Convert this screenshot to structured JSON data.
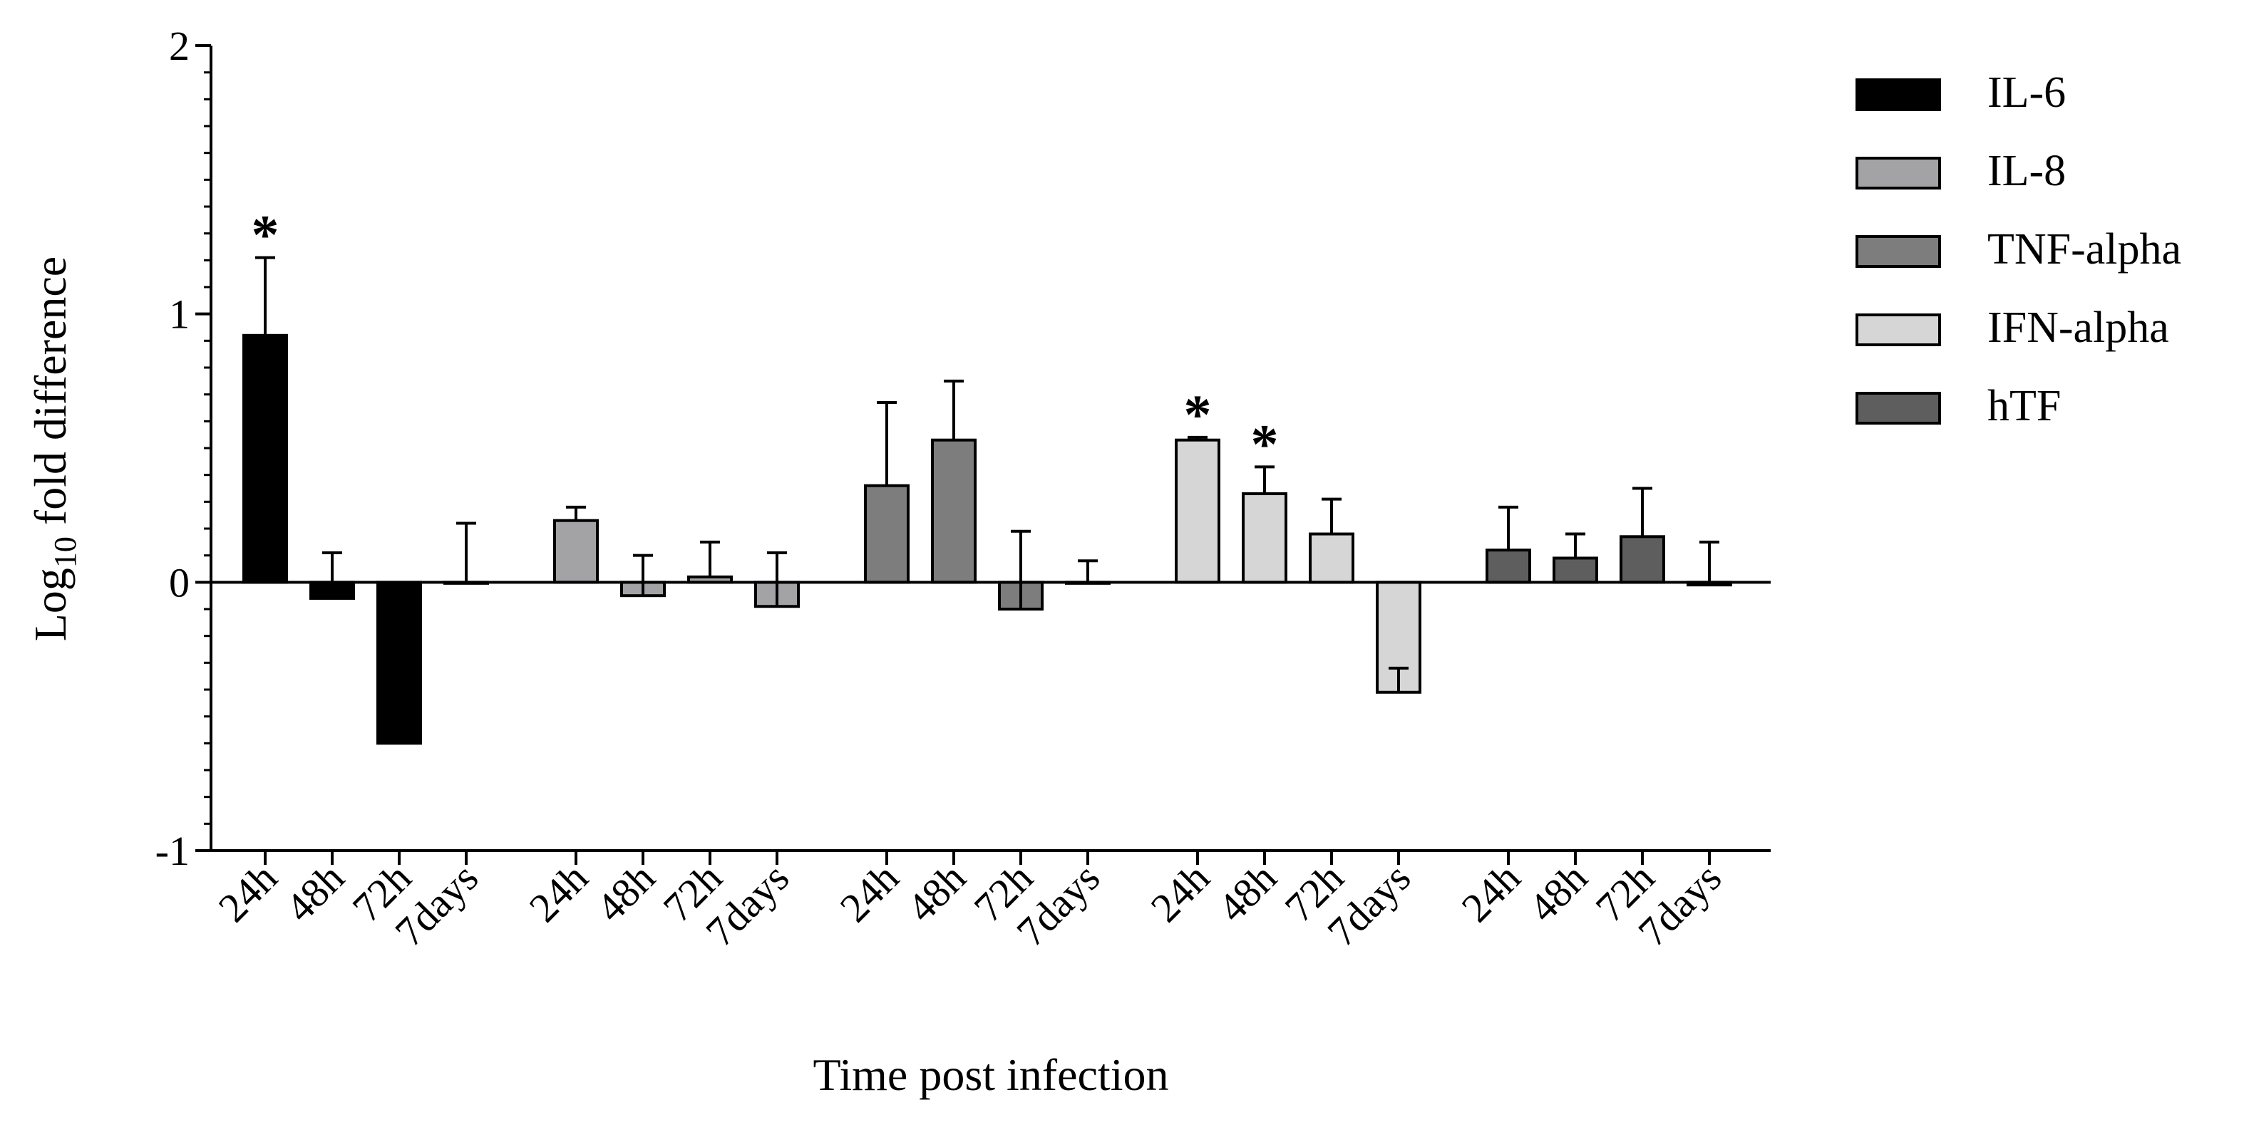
{
  "chart_data": {
    "type": "bar",
    "xlabel": "Time post infection",
    "ylabel_main": "Log",
    "ylabel_sub": "10",
    "ylabel_rest": " fold difference",
    "ylim": [
      -1,
      2
    ],
    "yticks": [
      -1,
      0,
      1,
      2
    ],
    "ytick_labels": [
      "-1",
      "0",
      "1",
      "2"
    ],
    "minor_tick_step": 0.1,
    "categories": [
      "24h",
      "48h",
      "72h",
      "7days"
    ],
    "significance_marker": "*",
    "series": [
      {
        "name": "IL-6",
        "color": "#000000",
        "values": [
          0.92,
          -0.06,
          -0.6,
          0.0
        ],
        "errors": [
          0.29,
          0.17,
          0.15,
          0.22
        ],
        "significant": [
          true,
          false,
          false,
          false
        ]
      },
      {
        "name": "IL-8",
        "color": "#a3a3a6",
        "values": [
          0.23,
          -0.05,
          0.02,
          -0.09
        ],
        "errors": [
          0.05,
          0.15,
          0.13,
          0.2
        ],
        "significant": [
          false,
          false,
          false,
          false
        ]
      },
      {
        "name": "TNF-alpha",
        "color": "#7d7d7d",
        "values": [
          0.36,
          0.53,
          -0.1,
          0.0
        ],
        "errors": [
          0.31,
          0.22,
          0.29,
          0.08
        ],
        "significant": [
          false,
          false,
          false,
          false
        ]
      },
      {
        "name": "IFN-alpha",
        "color": "#d6d6d6",
        "values": [
          0.53,
          0.33,
          0.18,
          -0.41
        ],
        "errors": [
          0.01,
          0.1,
          0.13,
          0.09
        ],
        "significant": [
          true,
          true,
          false,
          false
        ]
      },
      {
        "name": "hTF",
        "color": "#5e5e5e",
        "values": [
          0.12,
          0.09,
          0.17,
          -0.01
        ],
        "errors": [
          0.16,
          0.09,
          0.18,
          0.16
        ],
        "significant": [
          false,
          false,
          false,
          false
        ]
      }
    ]
  }
}
